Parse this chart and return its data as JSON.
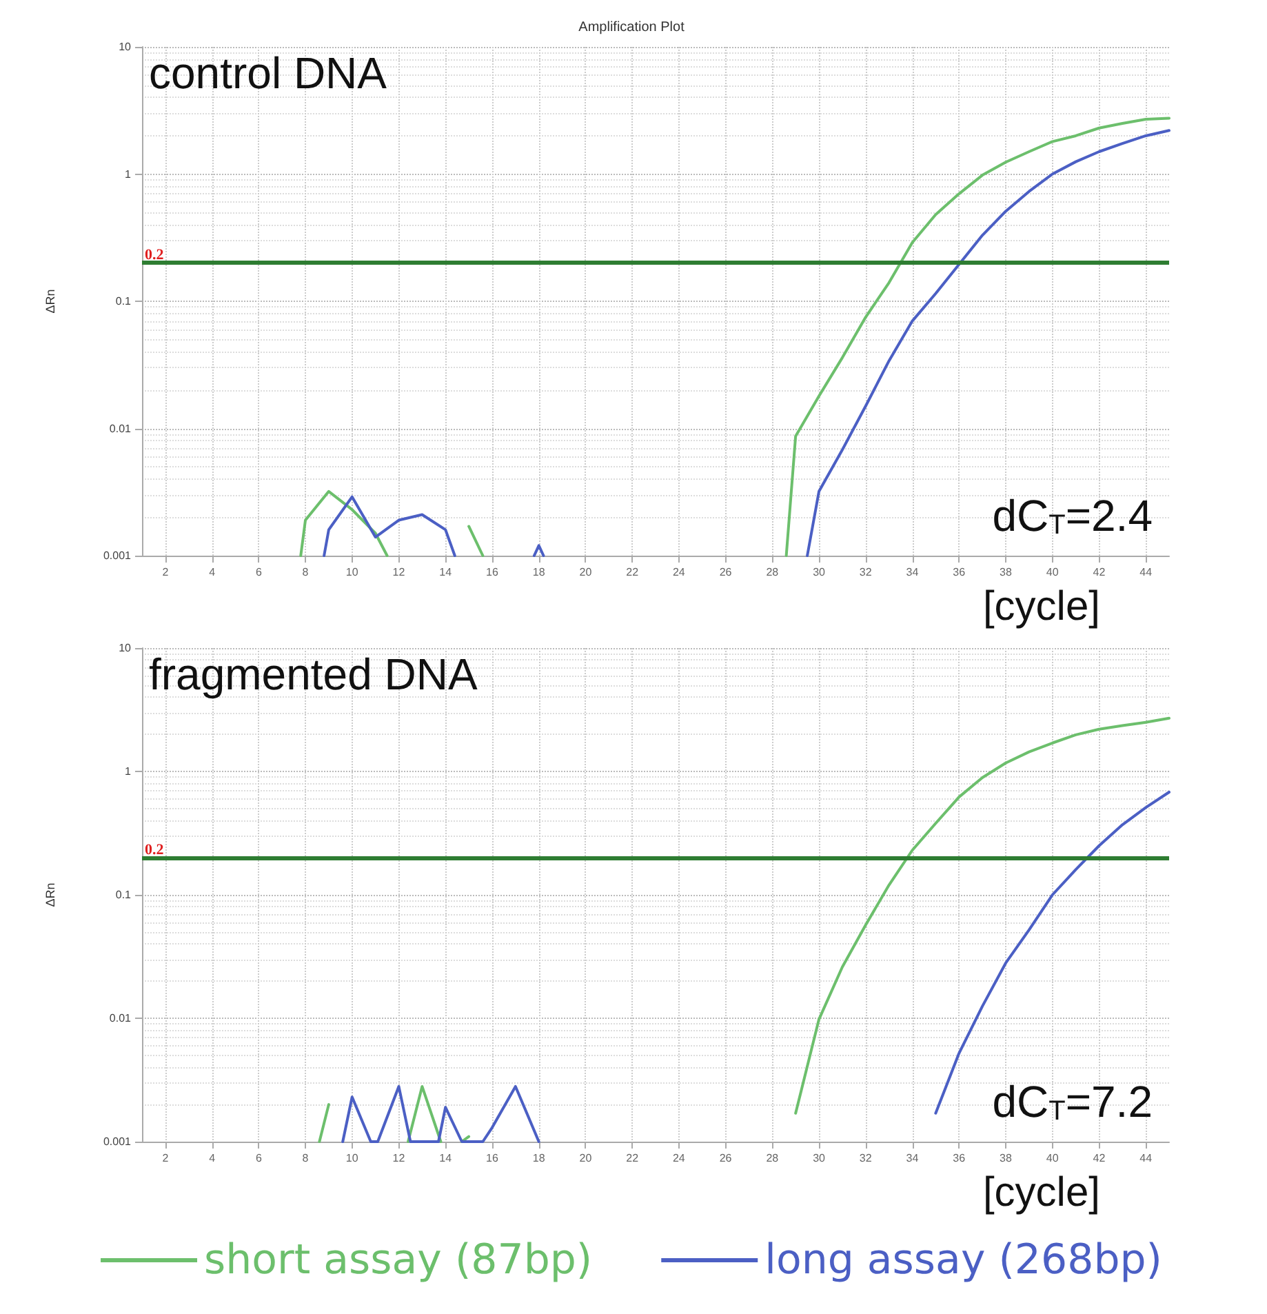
{
  "chart_data": [
    {
      "type": "line",
      "title": "Amplification Plot",
      "ylabel": "ΔRn",
      "xlabel": "[cycle]",
      "log": "y",
      "grid": true,
      "legend": false,
      "marker": "none",
      "line_style": "solid",
      "xlim": [
        1,
        45
      ],
      "xticks": [
        2,
        4,
        6,
        8,
        10,
        12,
        14,
        16,
        18,
        20,
        22,
        24,
        26,
        28,
        30,
        32,
        34,
        36,
        38,
        40,
        42,
        44
      ],
      "ylim": [
        0.001,
        10
      ],
      "yticks": [
        0.001,
        0.01,
        0.1,
        1,
        10
      ],
      "annotations": [
        "control DNA",
        "dC$_{T}$=2.4"
      ],
      "ref_lines": [
        {
          "axis": "y",
          "value": 0.2,
          "label": "0.2",
          "color": "#2e7d32"
        }
      ],
      "series": [
        {
          "color": "#6cbf6c",
          "x": [
            7.8,
            8,
            9,
            10,
            11,
            11.5,
            13,
            15,
            15.6,
            17,
            18.5,
            19,
            19.4,
            25,
            28.6,
            29,
            30,
            31,
            32,
            33,
            34,
            35,
            36,
            37,
            38,
            39,
            40,
            41,
            42,
            43,
            44,
            45
          ],
          "values": [
            0.001,
            0.0019,
            0.0032,
            0.0023,
            0.0015,
            0.001,
            null,
            0.0017,
            0.001,
            null,
            null,
            null,
            null,
            null,
            0.001,
            0.0087,
            0.018,
            0.036,
            0.075,
            0.14,
            0.29,
            0.48,
            0.7,
            0.98,
            1.24,
            1.5,
            1.8,
            2.0,
            2.3,
            2.5,
            2.7,
            2.75
          ]
        },
        {
          "color": "#4b5fc4",
          "x": [
            8.8,
            9,
            10,
            11,
            12,
            13,
            14,
            14.4,
            16,
            17.8,
            18,
            18.2,
            25,
            29.5,
            30,
            31,
            32,
            33,
            34,
            35,
            36,
            37,
            38,
            39,
            40,
            41,
            42,
            43,
            44,
            45
          ],
          "values": [
            0.001,
            0.0016,
            0.0029,
            0.0014,
            0.0019,
            0.0021,
            0.0016,
            0.001,
            null,
            0.001,
            0.0012,
            0.001,
            null,
            0.001,
            0.0032,
            0.0068,
            0.015,
            0.034,
            0.07,
            0.115,
            0.195,
            0.33,
            0.51,
            0.73,
            1.0,
            1.25,
            1.5,
            1.74,
            2.0,
            2.2
          ]
        }
      ]
    },
    {
      "type": "line",
      "ylabel": "ΔRn",
      "xlabel": "[cycle]",
      "log": "y",
      "grid": true,
      "legend": "bottom",
      "marker": "none",
      "line_style": "solid",
      "xlim": [
        1,
        45
      ],
      "xticks": [
        2,
        4,
        6,
        8,
        10,
        12,
        14,
        16,
        18,
        20,
        22,
        24,
        26,
        28,
        30,
        32,
        34,
        36,
        38,
        40,
        42,
        44
      ],
      "ylim": [
        0.001,
        10
      ],
      "yticks": [
        0.001,
        0.01,
        0.1,
        1,
        10
      ],
      "annotations": [
        "fragmented DNA",
        "dC$_{T}$=7.2"
      ],
      "ref_lines": [
        {
          "axis": "y",
          "value": 0.2,
          "label": "0.2",
          "color": "#2e7d32"
        }
      ],
      "series": [
        {
          "name": "short assay (87bp)",
          "color": "#6cbf6c",
          "x": [
            8.6,
            9,
            11,
            12.4,
            13,
            13.8,
            14,
            14.7,
            15,
            16,
            21.8,
            22,
            23,
            29,
            30,
            31,
            32,
            33,
            34,
            35,
            36,
            37,
            38,
            39,
            40,
            41,
            42,
            43,
            44,
            45
          ],
          "values": [
            0.001,
            0.002,
            null,
            0.001,
            0.0028,
            0.001,
            null,
            0.001,
            0.0011,
            null,
            null,
            null,
            null,
            0.0017,
            0.0098,
            0.026,
            0.057,
            0.12,
            0.23,
            0.38,
            0.62,
            0.89,
            1.17,
            1.44,
            1.7,
            1.98,
            2.2,
            2.35,
            2.5,
            2.7
          ]
        },
        {
          "name": "long assay (268bp)",
          "color": "#4b5fc4",
          "x": [
            9.6,
            10,
            10.8,
            11.1,
            12,
            12.5,
            13.7,
            14,
            14.7,
            15.6,
            16,
            17,
            18,
            25,
            35,
            36,
            37,
            38,
            39,
            40,
            41,
            42,
            43,
            44,
            45
          ],
          "values": [
            0.001,
            0.0023,
            0.001,
            0.001,
            0.0028,
            0.001,
            0.001,
            0.0019,
            0.001,
            0.001,
            0.0013,
            0.0028,
            0.001,
            null,
            0.0017,
            0.0052,
            0.0125,
            0.028,
            0.052,
            0.1,
            0.16,
            0.25,
            0.37,
            0.51,
            0.68
          ]
        }
      ]
    }
  ]
}
